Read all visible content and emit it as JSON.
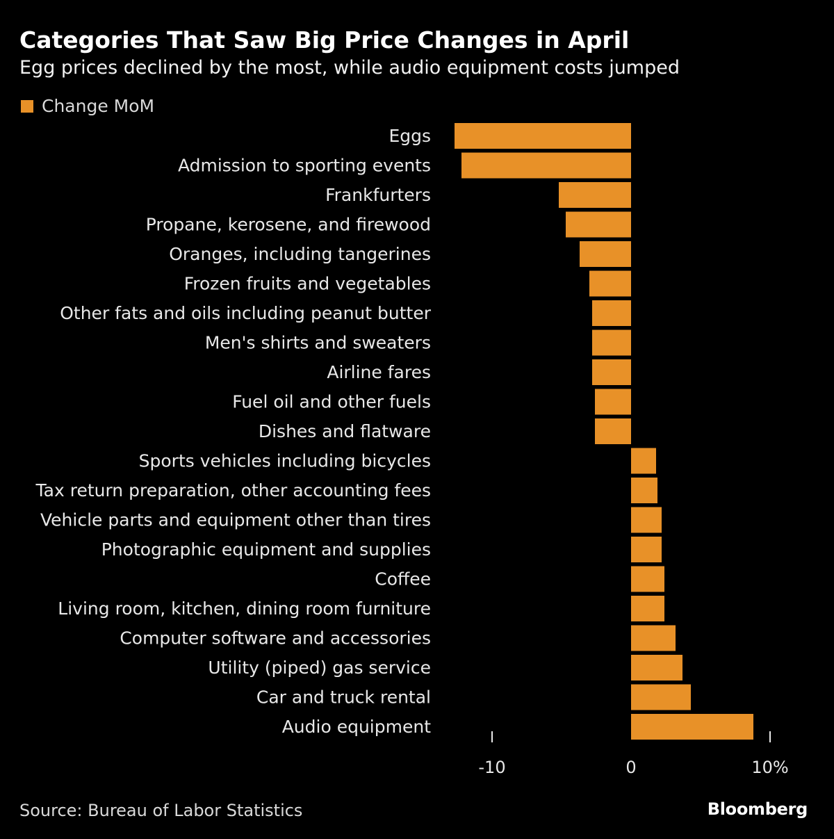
{
  "header": {
    "title": "Categories That Saw Big Price Changes in April",
    "subtitle": "Egg prices declined by the most, while audio equipment costs jumped"
  },
  "legend": {
    "label": "Change MoM",
    "color": "#e89128"
  },
  "footer": {
    "source": "Source: Bureau of Labor Statistics",
    "brand": "Bloomberg"
  },
  "colors": {
    "background": "#000000",
    "bar": "#e89128",
    "text": "#e8e8e8"
  },
  "chart_data": {
    "type": "bar",
    "orientation": "horizontal",
    "title": "Categories That Saw Big Price Changes in April",
    "subtitle": "Egg prices declined by the most, while audio equipment costs jumped",
    "xlabel": "",
    "ylabel": "",
    "xlim": [
      -12.5,
      10
    ],
    "x_ticks": [
      -10,
      0,
      10
    ],
    "x_tick_labels": [
      "-10",
      "0",
      "10%"
    ],
    "grid": false,
    "legend_position": "top-left",
    "series": [
      {
        "name": "Change MoM",
        "color": "#e89128",
        "values": [
          -12.7,
          -12.2,
          -5.2,
          -4.7,
          -3.7,
          -3.0,
          -2.8,
          -2.8,
          -2.8,
          -2.6,
          -2.6,
          1.8,
          1.9,
          2.2,
          2.2,
          2.4,
          2.4,
          3.2,
          3.7,
          4.3,
          8.8
        ]
      }
    ],
    "categories": [
      "Eggs",
      "Admission to sporting events",
      "Frankfurters",
      "Propane, kerosene, and firewood",
      "Oranges, including tangerines",
      "Frozen fruits and vegetables",
      "Other fats and oils including peanut butter",
      "Men's shirts and sweaters",
      "Airline fares",
      "Fuel oil and other fuels",
      "Dishes and flatware",
      "Sports vehicles including bicycles",
      "Tax return preparation, other accounting fees",
      "Vehicle parts and equipment other than tires",
      "Photographic equipment and supplies",
      "Coffee",
      "Living room, kitchen, dining room furniture",
      "Computer software and accessories",
      "Utility (piped) gas service",
      "Car and truck rental",
      "Audio equipment"
    ]
  }
}
